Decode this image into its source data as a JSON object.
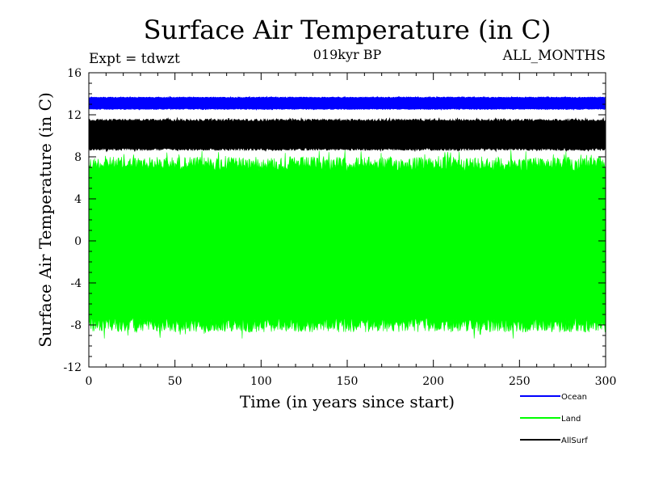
{
  "chart_data": {
    "type": "line",
    "title": "Surface Air Temperature (in C)",
    "subtitle": "019kyr BP",
    "left_note": "Expt = tdwzt",
    "right_note": "ALL_MONTHS",
    "xlabel": "Time (in years since start)",
    "ylabel": "Surface Air Temperature (in C)",
    "xlim": [
      0,
      300
    ],
    "ylim": [
      -12,
      16
    ],
    "x_ticks": [
      0,
      50,
      100,
      150,
      200,
      250,
      300
    ],
    "y_ticks": [
      -12,
      -8,
      -4,
      0,
      4,
      8,
      12,
      16
    ],
    "grid": false,
    "legend_position": "bottom-right",
    "series": [
      {
        "name": "Ocean",
        "color": "#0000ff",
        "low": 12.5,
        "high": 13.7,
        "mean": 13.1
      },
      {
        "name": "Land",
        "color": "#00ff00",
        "low": -8.7,
        "high": 8.0,
        "mean": -0.3
      },
      {
        "name": "AllSurf",
        "color": "#000000",
        "low": 8.6,
        "high": 11.6,
        "mean": 10.1
      }
    ]
  }
}
